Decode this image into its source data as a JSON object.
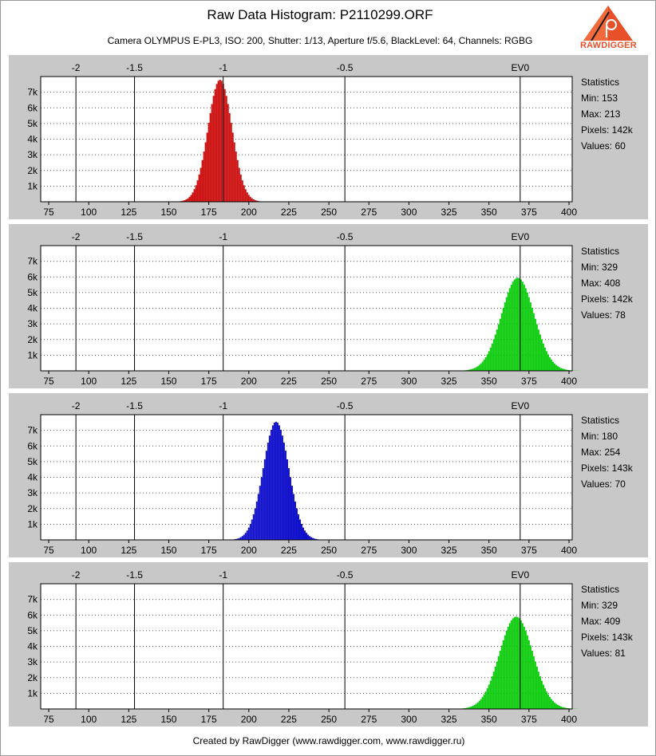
{
  "header": {
    "title": "Raw Data Histogram: P2110299.ORF",
    "subtitle": "Camera OLYMPUS E-PL3, ISO: 200, Shutter: 1/13, Aperture f/5.6, BlackLevel: 64, Channels: RGBG",
    "logo_text": "RAWDIGGER",
    "logo_icon": "rawdigger-logo-icon"
  },
  "footer": {
    "text": "Created by RawDigger (www.rawdigger.com, www.rawdigger.ru)"
  },
  "colors": {
    "red": "#cc1010",
    "green": "#10cc10",
    "blue": "#1010cc",
    "panel": "#c8c8c8",
    "plot": "#ffffff"
  },
  "chart_data": [
    {
      "type": "bar",
      "channel_color": "#cc1010",
      "xlim": [
        70,
        402
      ],
      "ylim": [
        0,
        8000
      ],
      "x_ticks": [
        75,
        100,
        125,
        150,
        175,
        200,
        225,
        250,
        275,
        300,
        325,
        350,
        375,
        400
      ],
      "y_ticks": [
        1000,
        2000,
        3000,
        4000,
        5000,
        6000,
        7000
      ],
      "y_tick_labels": [
        "1k",
        "2k",
        "3k",
        "4k",
        "5k",
        "6k",
        "7k"
      ],
      "ev_marks": [
        {
          "label": "-2",
          "x": 92
        },
        {
          "label": "-1.5",
          "x": 128.6
        },
        {
          "label": "-1",
          "x": 184
        },
        {
          "label": "-0.5",
          "x": 260
        },
        {
          "label": "EV0",
          "x": 369.5
        }
      ],
      "distribution": {
        "mean": 182,
        "sd": 7.5,
        "peak": 7800,
        "min": 153,
        "max": 213
      },
      "statistics": {
        "heading": "Statistics",
        "lines": [
          "Min: 153",
          "Max: 213",
          "Pixels: 142k",
          "Values: 60"
        ]
      }
    },
    {
      "type": "bar",
      "channel_color": "#10cc10",
      "xlim": [
        70,
        402
      ],
      "ylim": [
        0,
        8000
      ],
      "x_ticks": [
        75,
        100,
        125,
        150,
        175,
        200,
        225,
        250,
        275,
        300,
        325,
        350,
        375,
        400
      ],
      "y_ticks": [
        1000,
        2000,
        3000,
        4000,
        5000,
        6000,
        7000
      ],
      "y_tick_labels": [
        "1k",
        "2k",
        "3k",
        "4k",
        "5k",
        "6k",
        "7k"
      ],
      "ev_marks": [
        {
          "label": "-2",
          "x": 92
        },
        {
          "label": "-1.5",
          "x": 128.6
        },
        {
          "label": "-1",
          "x": 184
        },
        {
          "label": "-0.5",
          "x": 260
        },
        {
          "label": "EV0",
          "x": 369.5
        }
      ],
      "distribution": {
        "mean": 368,
        "sd": 10.2,
        "peak": 5950,
        "min": 329,
        "max": 408
      },
      "statistics": {
        "heading": "Statistics",
        "lines": [
          "Min: 329",
          "Max: 408",
          "Pixels: 142k",
          "Values: 78"
        ]
      }
    },
    {
      "type": "bar",
      "channel_color": "#1010cc",
      "xlim": [
        70,
        402
      ],
      "ylim": [
        0,
        8000
      ],
      "x_ticks": [
        75,
        100,
        125,
        150,
        175,
        200,
        225,
        250,
        275,
        300,
        325,
        350,
        375,
        400
      ],
      "y_ticks": [
        1000,
        2000,
        3000,
        4000,
        5000,
        6000,
        7000
      ],
      "y_tick_labels": [
        "1k",
        "2k",
        "3k",
        "4k",
        "5k",
        "6k",
        "7k"
      ],
      "ev_marks": [
        {
          "label": "-2",
          "x": 92
        },
        {
          "label": "-1.5",
          "x": 128.6
        },
        {
          "label": "-1",
          "x": 184
        },
        {
          "label": "-0.5",
          "x": 260
        },
        {
          "label": "EV0",
          "x": 369.5
        }
      ],
      "distribution": {
        "mean": 217,
        "sd": 8.0,
        "peak": 7550,
        "min": 180,
        "max": 254
      },
      "statistics": {
        "heading": "Statistics",
        "lines": [
          "Min: 180",
          "Max: 254",
          "Pixels: 143k",
          "Values: 70"
        ]
      }
    },
    {
      "type": "bar",
      "channel_color": "#10cc10",
      "xlim": [
        70,
        402
      ],
      "ylim": [
        0,
        8000
      ],
      "x_ticks": [
        75,
        100,
        125,
        150,
        175,
        200,
        225,
        250,
        275,
        300,
        325,
        350,
        375,
        400
      ],
      "y_ticks": [
        1000,
        2000,
        3000,
        4000,
        5000,
        6000,
        7000
      ],
      "y_tick_labels": [
        "1k",
        "2k",
        "3k",
        "4k",
        "5k",
        "6k",
        "7k"
      ],
      "ev_marks": [
        {
          "label": "-2",
          "x": 92
        },
        {
          "label": "-1.5",
          "x": 128.6
        },
        {
          "label": "-1",
          "x": 184
        },
        {
          "label": "-0.5",
          "x": 260
        },
        {
          "label": "EV0",
          "x": 369.5
        }
      ],
      "distribution": {
        "mean": 367,
        "sd": 10.4,
        "peak": 5900,
        "min": 329,
        "max": 409
      },
      "statistics": {
        "heading": "Statistics",
        "lines": [
          "Min: 329",
          "Max: 409",
          "Pixels: 143k",
          "Values: 81"
        ]
      }
    }
  ]
}
